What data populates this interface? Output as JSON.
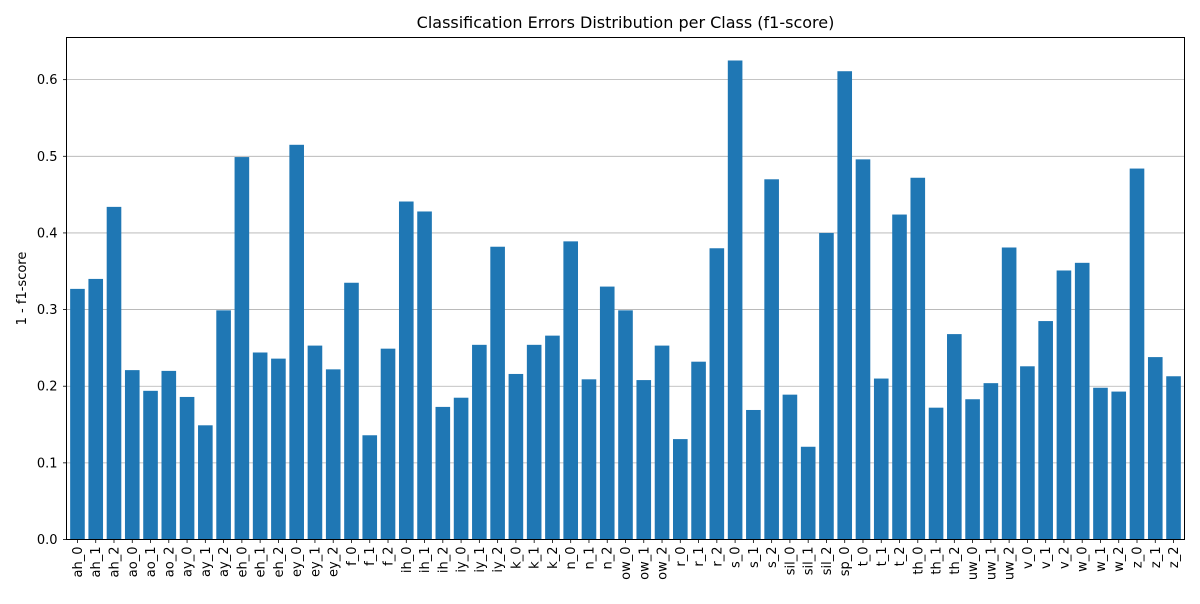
{
  "chart_data": {
    "type": "bar",
    "title": "Classification Errors Distribution per Class (f1-score)",
    "xlabel": "",
    "ylabel": "1 - f1-score",
    "ylim": [
      0,
      0.655
    ],
    "yticks": [
      0.0,
      0.1,
      0.2,
      0.3,
      0.4,
      0.5,
      0.6
    ],
    "ytick_labels": [
      "0.0",
      "0.1",
      "0.2",
      "0.3",
      "0.4",
      "0.5",
      "0.6"
    ],
    "grid": "y-major",
    "bar_color": "#1f77b4",
    "categories": [
      "ah_0",
      "ah_1",
      "ah_2",
      "ao_0",
      "ao_1",
      "ao_2",
      "ay_0",
      "ay_1",
      "ay_2",
      "eh_0",
      "eh_1",
      "eh_2",
      "ey_0",
      "ey_1",
      "ey_2",
      "f_0",
      "f_1",
      "f_2",
      "ih_0",
      "ih_1",
      "ih_2",
      "iy_0",
      "iy_1",
      "iy_2",
      "k_0",
      "k_1",
      "k_2",
      "n_0",
      "n_1",
      "n_2",
      "ow_0",
      "ow_1",
      "ow_2",
      "r_0",
      "r_1",
      "r_2",
      "s_0",
      "s_1",
      "s_2",
      "sil_0",
      "sil_1",
      "sil_2",
      "sp_0",
      "t_0",
      "t_1",
      "t_2",
      "th_0",
      "th_1",
      "th_2",
      "uw_0",
      "uw_1",
      "uw_2",
      "v_0",
      "v_1",
      "v_2",
      "w_0",
      "w_1",
      "w_2",
      "z_0",
      "z_1",
      "z_2"
    ],
    "values": [
      0.327,
      0.34,
      0.434,
      0.221,
      0.194,
      0.22,
      0.186,
      0.149,
      0.299,
      0.499,
      0.244,
      0.236,
      0.515,
      0.253,
      0.222,
      0.335,
      0.136,
      0.249,
      0.441,
      0.428,
      0.173,
      0.185,
      0.254,
      0.382,
      0.216,
      0.254,
      0.266,
      0.389,
      0.209,
      0.33,
      0.299,
      0.208,
      0.253,
      0.131,
      0.232,
      0.38,
      0.625,
      0.169,
      0.47,
      0.189,
      0.121,
      0.4,
      0.611,
      0.496,
      0.21,
      0.424,
      0.472,
      0.172,
      0.268,
      0.183,
      0.204,
      0.381,
      0.226,
      0.285,
      0.351,
      0.361,
      0.198,
      0.193,
      0.484,
      0.238,
      0.213
    ]
  }
}
